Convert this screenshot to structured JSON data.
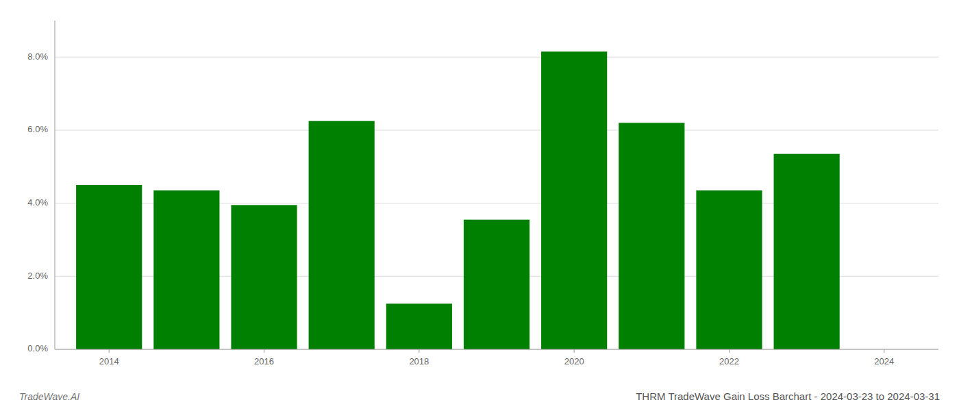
{
  "chart_data": {
    "type": "bar",
    "title": "THRM TradeWave Gain Loss Barchart - 2024-03-23 to 2024-03-31",
    "annotations": [
      "TradeWave.AI"
    ],
    "x": [
      2014,
      2015,
      2016,
      2017,
      2018,
      2019,
      2020,
      2021,
      2022,
      2023
    ],
    "values": [
      0.045,
      0.0435,
      0.0395,
      0.0625,
      0.0125,
      0.0355,
      0.0815,
      0.062,
      0.0435,
      0.0535
    ],
    "color": "#008000",
    "xlim": [
      2013.3,
      2024.7
    ],
    "xticks": [
      2014,
      2016,
      2018,
      2020,
      2022,
      2024
    ],
    "ylim": [
      0,
      0.09
    ],
    "yticks": [
      {
        "value": 0.0,
        "label": "0.0%"
      },
      {
        "value": 0.02,
        "label": "2.0%"
      },
      {
        "value": 0.04,
        "label": "4.0%"
      },
      {
        "value": 0.06,
        "label": "6.0%"
      },
      {
        "value": 0.08,
        "label": "8.0%"
      }
    ],
    "grid": true
  }
}
